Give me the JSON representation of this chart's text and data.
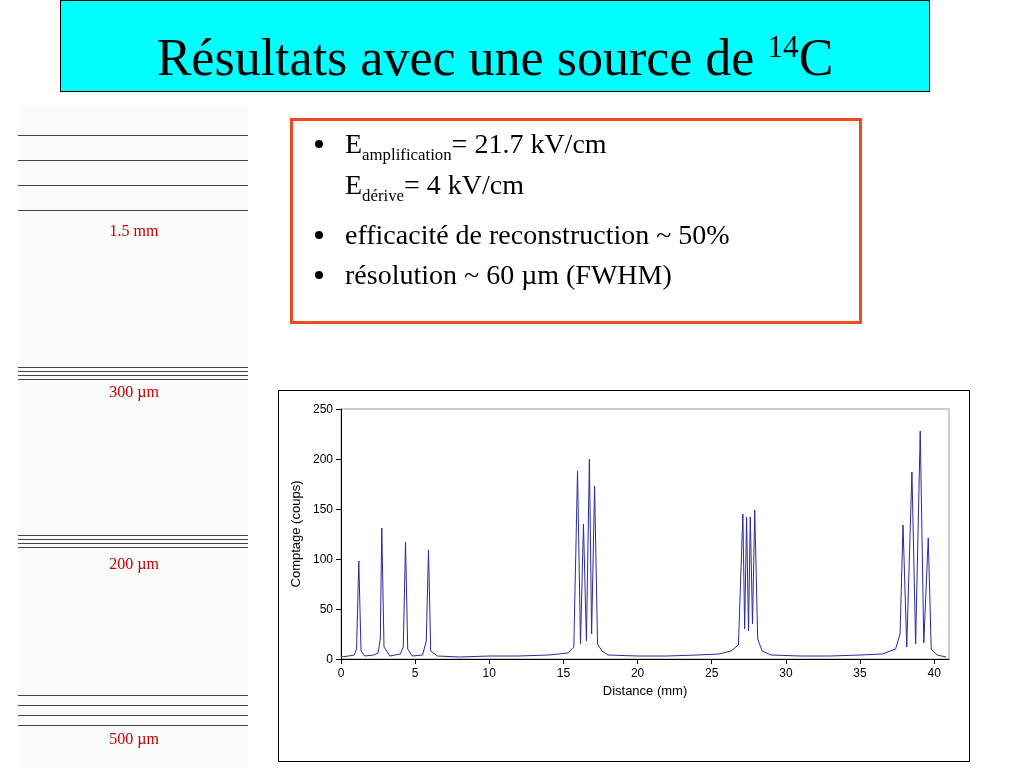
{
  "chart_data": {
    "type": "line",
    "title": "Résultats avec une source de $^{14}$C",
    "annotations": [
      "E$_{amplification}$= 21.7 kV/cm",
      "E$_{dérive}$= 4 kV/cm",
      "efficacité de reconstruction ~ 50%",
      "résolution ~ 60 µm (FWHM)",
      "1.5 mm",
      "300 µm",
      "200 µm",
      "500 µm"
    ],
    "xlabel": "Distance (mm)",
    "ylabel": "Comptage (coups)",
    "x": [
      0,
      0.5,
      0.9,
      1.05,
      1.2,
      1.35,
      1.6,
      2.2,
      2.5,
      2.65,
      2.75,
      2.9,
      3.3,
      4.0,
      4.2,
      4.35,
      4.5,
      4.8,
      5.5,
      5.75,
      5.9,
      6.05,
      6.5,
      8,
      10,
      12,
      14,
      15.3,
      15.7,
      15.95,
      16.15,
      16.35,
      16.55,
      16.75,
      16.9,
      17.1,
      17.3,
      17.6,
      18,
      20,
      22,
      24,
      25.5,
      26.3,
      26.8,
      27.1,
      27.22,
      27.35,
      27.48,
      27.6,
      27.75,
      27.9,
      28.1,
      28.4,
      29,
      31,
      33,
      35,
      36.5,
      37.4,
      37.7,
      37.9,
      38.15,
      38.5,
      38.75,
      39.06,
      39.3,
      39.6,
      39.8,
      40.2,
      40.8
    ],
    "series": [
      {
        "color": "#2b2b9a",
        "values": [
          2,
          3,
          4,
          10,
          98,
          8,
          3,
          4,
          6,
          20,
          131,
          12,
          3,
          5,
          12,
          117,
          10,
          3,
          4,
          18,
          109,
          8,
          3,
          2,
          3,
          3,
          4,
          6,
          12,
          188,
          15,
          135,
          18,
          200,
          25,
          173,
          15,
          8,
          4,
          3,
          3,
          4,
          5,
          8,
          14,
          145,
          30,
          142,
          28,
          142,
          35,
          149,
          20,
          8,
          4,
          3,
          3,
          4,
          5,
          10,
          25,
          134,
          12,
          187,
          15,
          228,
          16,
          121,
          10,
          4,
          2
        ]
      }
    ],
    "xlim": [
      0,
      41
    ],
    "xticks": [
      0,
      5,
      10,
      15,
      20,
      25,
      30,
      35,
      40
    ],
    "ylim": [
      0,
      250
    ],
    "yticks": [
      0,
      50,
      100,
      150,
      200,
      250
    ],
    "grid": false,
    "marker": "none",
    "line_style": "solid"
  }
}
